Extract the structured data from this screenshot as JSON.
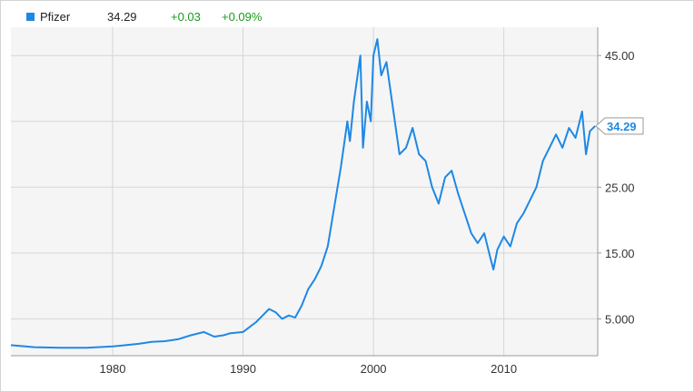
{
  "legend": {
    "name": "Pfizer",
    "price": "34.29",
    "change": "+0.03",
    "change_pct": "+0.09%",
    "swatch_color": "#1e88e5",
    "change_color": "#1a9b1a"
  },
  "chart_data": {
    "type": "line",
    "title": "",
    "xlabel": "",
    "ylabel": "",
    "xlim": [
      1972.2,
      2017.2
    ],
    "ylim": [
      -0.6,
      49.3
    ],
    "y_axis_position": "right",
    "grid": true,
    "x_ticks": [
      {
        "value": 1980,
        "label": "1980"
      },
      {
        "value": 1990,
        "label": "1990"
      },
      {
        "value": 2000,
        "label": "2000"
      },
      {
        "value": 2010,
        "label": "2010"
      }
    ],
    "y_ticks": [
      {
        "value": 5,
        "label": "5.000"
      },
      {
        "value": 15,
        "label": "15.00"
      },
      {
        "value": 25,
        "label": "25.00"
      },
      {
        "value": 45,
        "label": "45.00"
      }
    ],
    "y_gridlines": [
      5,
      15,
      25,
      35,
      45
    ],
    "last_value_label": "34.29",
    "series": [
      {
        "name": "Pfizer",
        "color": "#1e88e5",
        "x": [
          1972.2,
          1974,
          1976,
          1978,
          1980,
          1981,
          1982,
          1983,
          1984,
          1985,
          1986,
          1987,
          1987.8,
          1988.5,
          1989,
          1990,
          1991,
          1991.5,
          1992,
          1992.5,
          1993,
          1993.5,
          1994,
          1994.5,
          1995,
          1995.5,
          1996,
          1996.5,
          1997,
          1997.5,
          1998,
          1998.2,
          1998.5,
          1999,
          1999.2,
          1999.5,
          1999.8,
          2000,
          2000.3,
          2000.6,
          2001,
          2001.5,
          2002,
          2002.5,
          2003,
          2003.5,
          2004,
          2004.5,
          2005,
          2005.5,
          2006,
          2006.5,
          2007,
          2007.5,
          2008,
          2008.5,
          2009,
          2009.2,
          2009.5,
          2010,
          2010.5,
          2011,
          2011.5,
          2012,
          2012.5,
          2013,
          2013.5,
          2014,
          2014.5,
          2015,
          2015.5,
          2016,
          2016.3,
          2016.6,
          2017
        ],
        "y": [
          1.0,
          0.7,
          0.6,
          0.6,
          0.8,
          1.0,
          1.2,
          1.5,
          1.6,
          1.9,
          2.5,
          3.0,
          2.3,
          2.5,
          2.8,
          3.0,
          4.5,
          5.5,
          6.5,
          6.0,
          5.0,
          5.5,
          5.2,
          7.0,
          9.5,
          11.0,
          13.0,
          16.0,
          22.0,
          28.0,
          35.0,
          32.0,
          38.0,
          45.0,
          31.0,
          38.0,
          35.0,
          45.0,
          47.5,
          42.0,
          44.0,
          37.0,
          30.0,
          31.0,
          34.0,
          30.0,
          29.0,
          25.0,
          22.5,
          26.5,
          27.5,
          24.0,
          21.0,
          18.0,
          16.5,
          18.0,
          14.0,
          12.5,
          15.5,
          17.5,
          16.0,
          19.5,
          21.0,
          23.0,
          25.0,
          29.0,
          31.0,
          33.0,
          31.0,
          34.0,
          32.5,
          36.5,
          30.0,
          33.5,
          34.29
        ]
      }
    ]
  }
}
